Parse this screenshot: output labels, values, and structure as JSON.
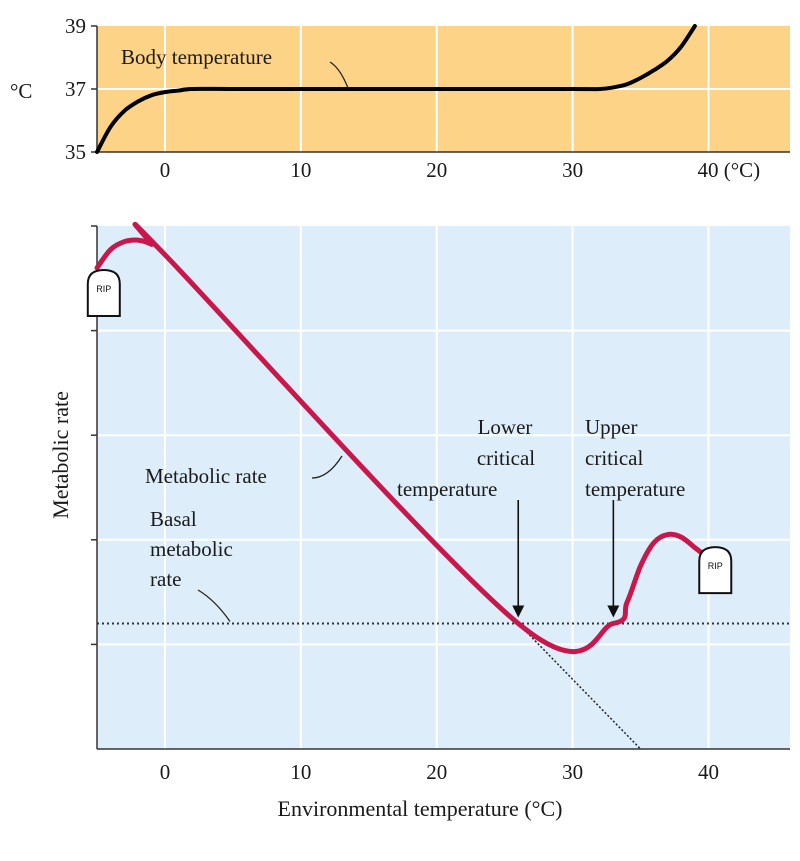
{
  "chart_data": [
    {
      "type": "line",
      "title": "",
      "ylabel": "°C",
      "xlim": [
        -5,
        46
      ],
      "ylim": [
        35,
        39
      ],
      "x_ticks": [
        0,
        10,
        20,
        30,
        40
      ],
      "x_tick_labels": [
        "0",
        "10",
        "20",
        "30",
        "40 (°C)"
      ],
      "y_ticks": [
        35,
        37,
        39
      ],
      "y_tick_labels": [
        "35",
        "37",
        "39"
      ],
      "grid": true,
      "colors": {
        "background": "#fcd387",
        "line": "#000000",
        "grid": "#ffffff"
      },
      "series": [
        {
          "name": "Body temperature",
          "x": [
            -5,
            -4,
            -3,
            -2,
            -1,
            0,
            1,
            2,
            5,
            10,
            20,
            30,
            32,
            33,
            34,
            35,
            36,
            37,
            38,
            39
          ],
          "y": [
            35,
            35.8,
            36.3,
            36.6,
            36.8,
            36.9,
            36.95,
            37,
            37,
            37,
            37,
            37,
            37,
            37.05,
            37.15,
            37.35,
            37.6,
            37.9,
            38.35,
            39
          ]
        }
      ],
      "annotations": [
        {
          "text": "Body temperature",
          "x": 13,
          "y": 37
        }
      ]
    },
    {
      "type": "line",
      "title": "",
      "xlabel": "Environmental temperature (°C)",
      "ylabel": "Metabolic rate",
      "xlim": [
        -5,
        46
      ],
      "ylim": [
        0,
        100
      ],
      "x_ticks": [
        0,
        10,
        20,
        30,
        40
      ],
      "x_tick_labels": [
        "0",
        "10",
        "20",
        "30",
        "40"
      ],
      "y_ticks": [
        20,
        40,
        60,
        80
      ],
      "grid": true,
      "colors": {
        "background": "#ddeefa",
        "line": "#c8174b",
        "baseline": "#333333",
        "grid": "#ffffff"
      },
      "series": [
        {
          "name": "Metabolic rate",
          "x": [
            -5,
            -4,
            -3,
            -2,
            -1,
            0,
            26,
            33,
            34,
            35,
            36,
            37,
            38,
            39,
            39.5
          ],
          "y": [
            92,
            95.5,
            97,
            97.3,
            96.5,
            94.5,
            24,
            24,
            28,
            35,
            39.5,
            41,
            40.5,
            38.5,
            37.5
          ]
        },
        {
          "name": "Basal metabolic rate",
          "x": [
            -5,
            46
          ],
          "y": [
            24,
            24
          ],
          "style": "dotted"
        },
        {
          "name": "extrapolation",
          "x": [
            26,
            35
          ],
          "y": [
            24,
            0
          ],
          "style": "dotted"
        }
      ],
      "annotations": [
        {
          "text": "Metabolic rate",
          "x": 13,
          "y": 55
        },
        {
          "text": [
            "Basal",
            "metabolic",
            "rate"
          ],
          "x": 5,
          "y": 24
        },
        {
          "text": [
            "Lower",
            "critical",
            "temperature"
          ],
          "x": 26,
          "y": 24
        },
        {
          "text": [
            "Upper",
            "critical",
            "temperature"
          ],
          "x": 33,
          "y": 24
        }
      ],
      "markers": [
        {
          "label": "RIP",
          "x": -4.5,
          "y": 87
        },
        {
          "label": "RIP",
          "x": 40.5,
          "y": 34
        }
      ]
    }
  ]
}
